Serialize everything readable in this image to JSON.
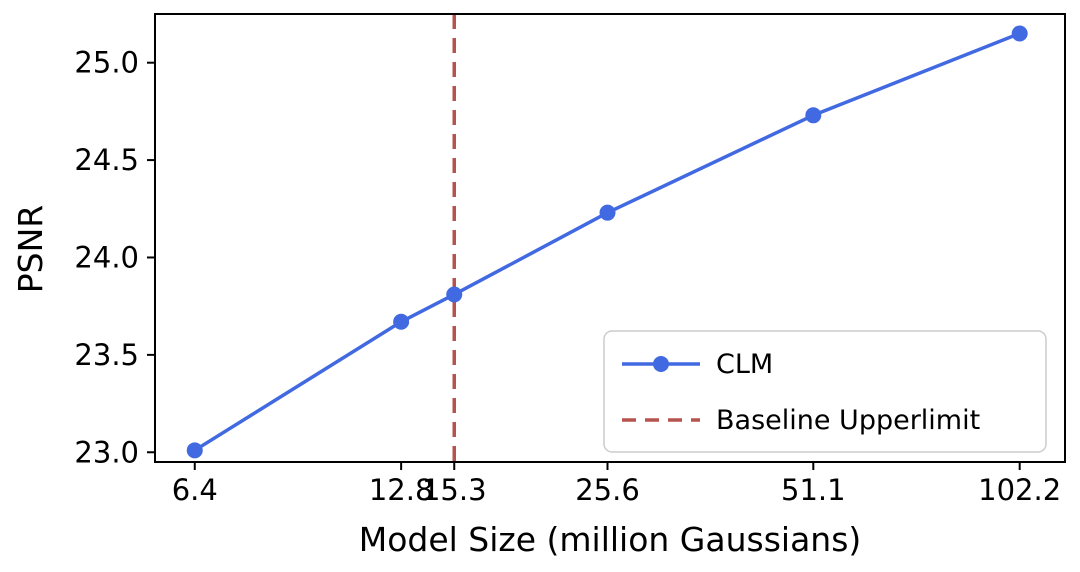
{
  "chart_data": {
    "type": "line",
    "title": "",
    "xlabel": "Model Size (million Gaussians)",
    "ylabel": "PSNR",
    "x_scale": "log",
    "xlim": [
      5.6,
      119
    ],
    "ylim": [
      22.95,
      25.25
    ],
    "x_ticks": [
      6.4,
      12.8,
      15.3,
      25.6,
      51.1,
      102.2
    ],
    "x_tick_labels": [
      "6.4",
      "12.8",
      "15.3",
      "25.6",
      "51.1",
      "102.2"
    ],
    "y_ticks": [
      23.0,
      23.5,
      24.0,
      24.5,
      25.0
    ],
    "y_tick_labels": [
      "23.0",
      "23.5",
      "24.0",
      "24.5",
      "25.0"
    ],
    "grid": false,
    "series": [
      {
        "name": "CLM",
        "type": "line",
        "marker": "circle",
        "color": "#4169e1",
        "x": [
          6.4,
          12.8,
          15.3,
          25.6,
          51.1,
          102.2
        ],
        "y": [
          23.01,
          23.67,
          23.81,
          24.23,
          24.73,
          25.15
        ]
      }
    ],
    "vlines": [
      {
        "name": "Baseline Upperlimit",
        "x": 15.3,
        "color": "#b5534e",
        "style": "dashed"
      }
    ],
    "legend": {
      "position": "lower right",
      "entries": [
        {
          "label": "CLM",
          "color": "#4169e1",
          "style": "line-marker"
        },
        {
          "label": "Baseline Upperlimit",
          "color": "#b5534e",
          "style": "dashed"
        }
      ]
    }
  },
  "colors": {
    "series_blue": "#4169e1",
    "baseline_red": "#b5534e",
    "axis_black": "#000000",
    "legend_border": "#cccccc",
    "background": "#ffffff"
  }
}
